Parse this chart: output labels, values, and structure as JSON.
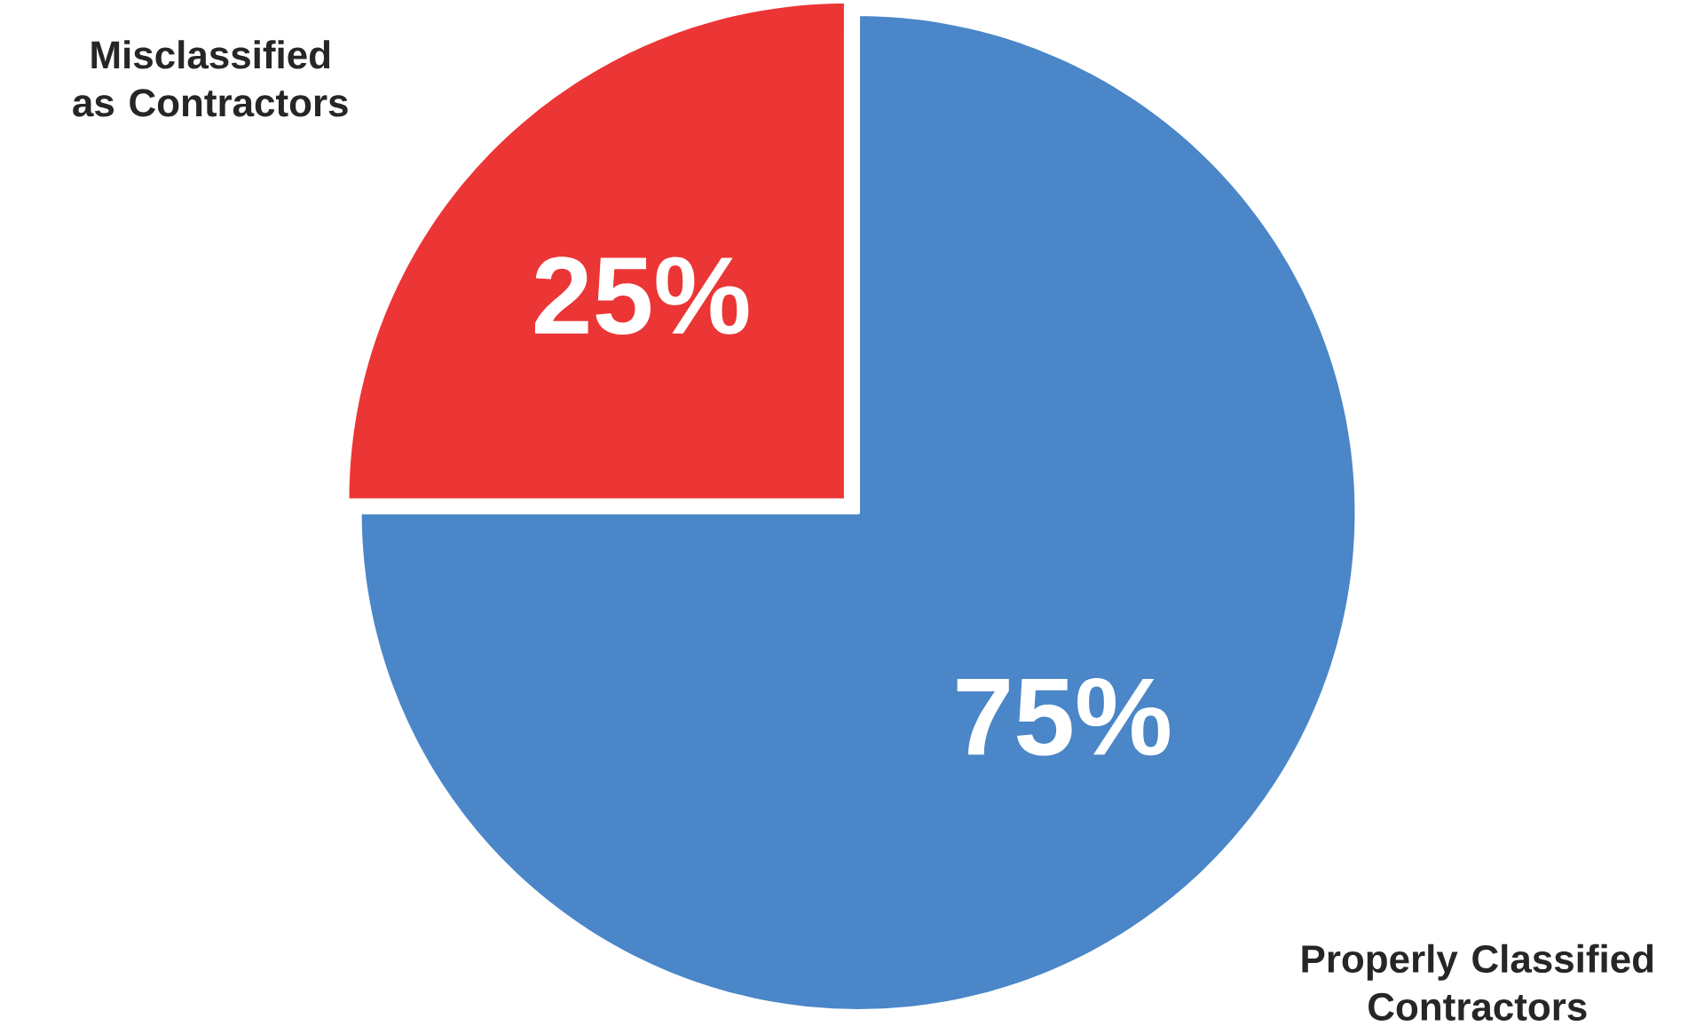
{
  "chart_data": {
    "type": "pie",
    "categories": [
      "Misclassified as Contractors",
      "Properly Classified Contractors"
    ],
    "values": [
      25,
      75
    ],
    "colors": [
      "#ec3535",
      "#4a86c8"
    ],
    "value_labels": [
      "25%",
      "75%"
    ]
  }
}
